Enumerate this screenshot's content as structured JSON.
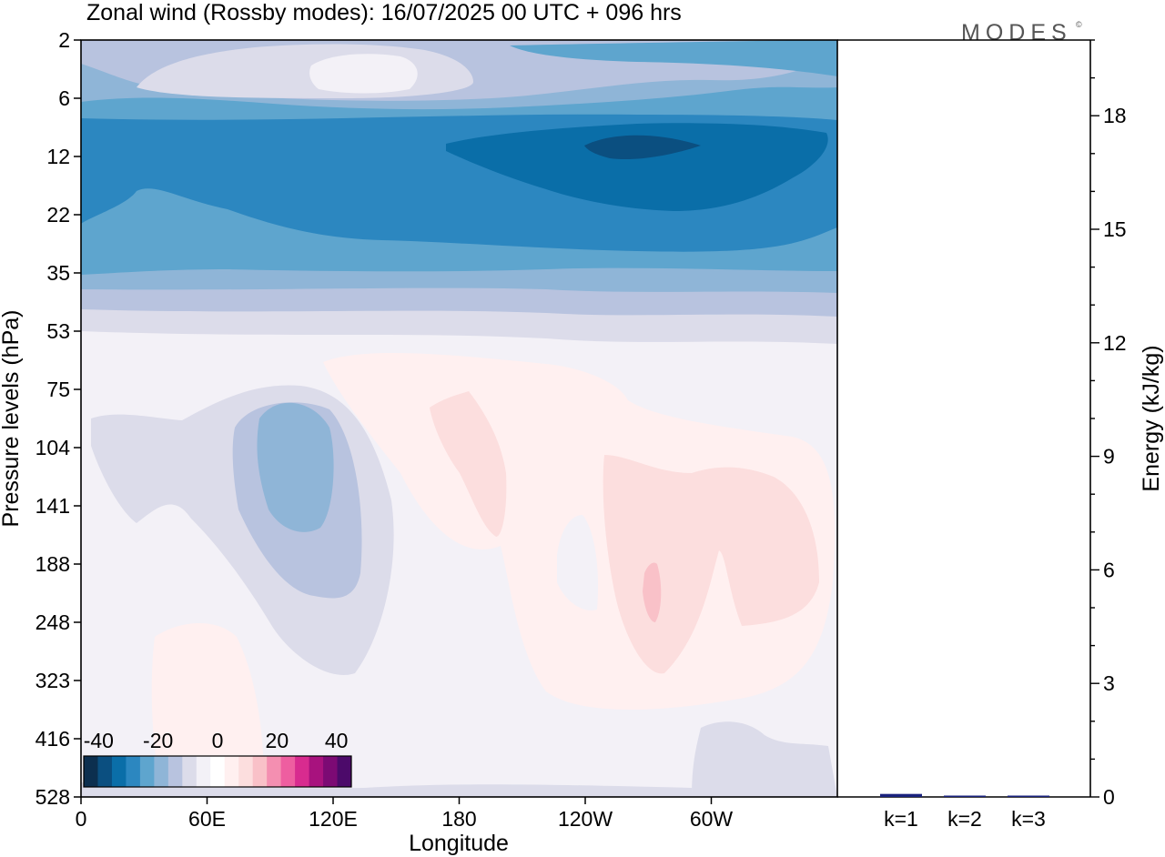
{
  "title": "Zonal wind (Rossby modes):  16/07/2025  00 UTC  + 096 hrs",
  "logo_text": "MODES",
  "logo_mark": "©",
  "chart_data": [
    {
      "type": "heatmap",
      "title": "Zonal wind (Rossby modes):  16/07/2025  00 UTC  + 096 hrs",
      "xlabel": "Longitude",
      "ylabel": "Pressure levels (hPa)",
      "x_ticks": [
        "0",
        "60E",
        "120E",
        "180",
        "120W",
        "60W"
      ],
      "x_tick_degrees": [
        0,
        60,
        120,
        180,
        240,
        300
      ],
      "xlim_degrees": [
        0,
        360
      ],
      "y_ticks": [
        "2",
        "6",
        "12",
        "22",
        "35",
        "53",
        "75",
        "104",
        "141",
        "188",
        "248",
        "323",
        "416",
        "528"
      ],
      "y_scale": "level-index",
      "colorbar": {
        "tick_labels": [
          "-40",
          "-20",
          "0",
          "20",
          "40"
        ],
        "tick_values": [
          -40,
          -20,
          0,
          20,
          40
        ],
        "range": [
          -45,
          45
        ],
        "step": 5,
        "colors": [
          "#0c2f4f",
          "#0b4f80",
          "#0a6ea8",
          "#2c87c0",
          "#5ea5ce",
          "#8fb5d7",
          "#b8c3df",
          "#dcdcea",
          "#f3f1f7",
          "#ffffff",
          "#fff0f0",
          "#fcdede",
          "#f9c1c8",
          "#f48fb1",
          "#ee5ea0",
          "#d82b8f",
          "#a8127e",
          "#7c0a74",
          "#4c0a6a"
        ]
      },
      "legend_placement": "bottom-left",
      "grid": false
    },
    {
      "type": "bar",
      "ylabel": "Energy (kJ/kg)",
      "y_axis_side": "right",
      "ylim": [
        0,
        20
      ],
      "y_ticks": [
        "0",
        "3",
        "6",
        "9",
        "12",
        "15",
        "18"
      ],
      "y_tick_values": [
        0,
        3,
        6,
        9,
        12,
        15,
        18
      ],
      "categories": [
        "k=1",
        "k=2",
        "k=3"
      ],
      "values": [
        0.08,
        0.03,
        0.02
      ],
      "bar_color": "#1a237e"
    }
  ]
}
